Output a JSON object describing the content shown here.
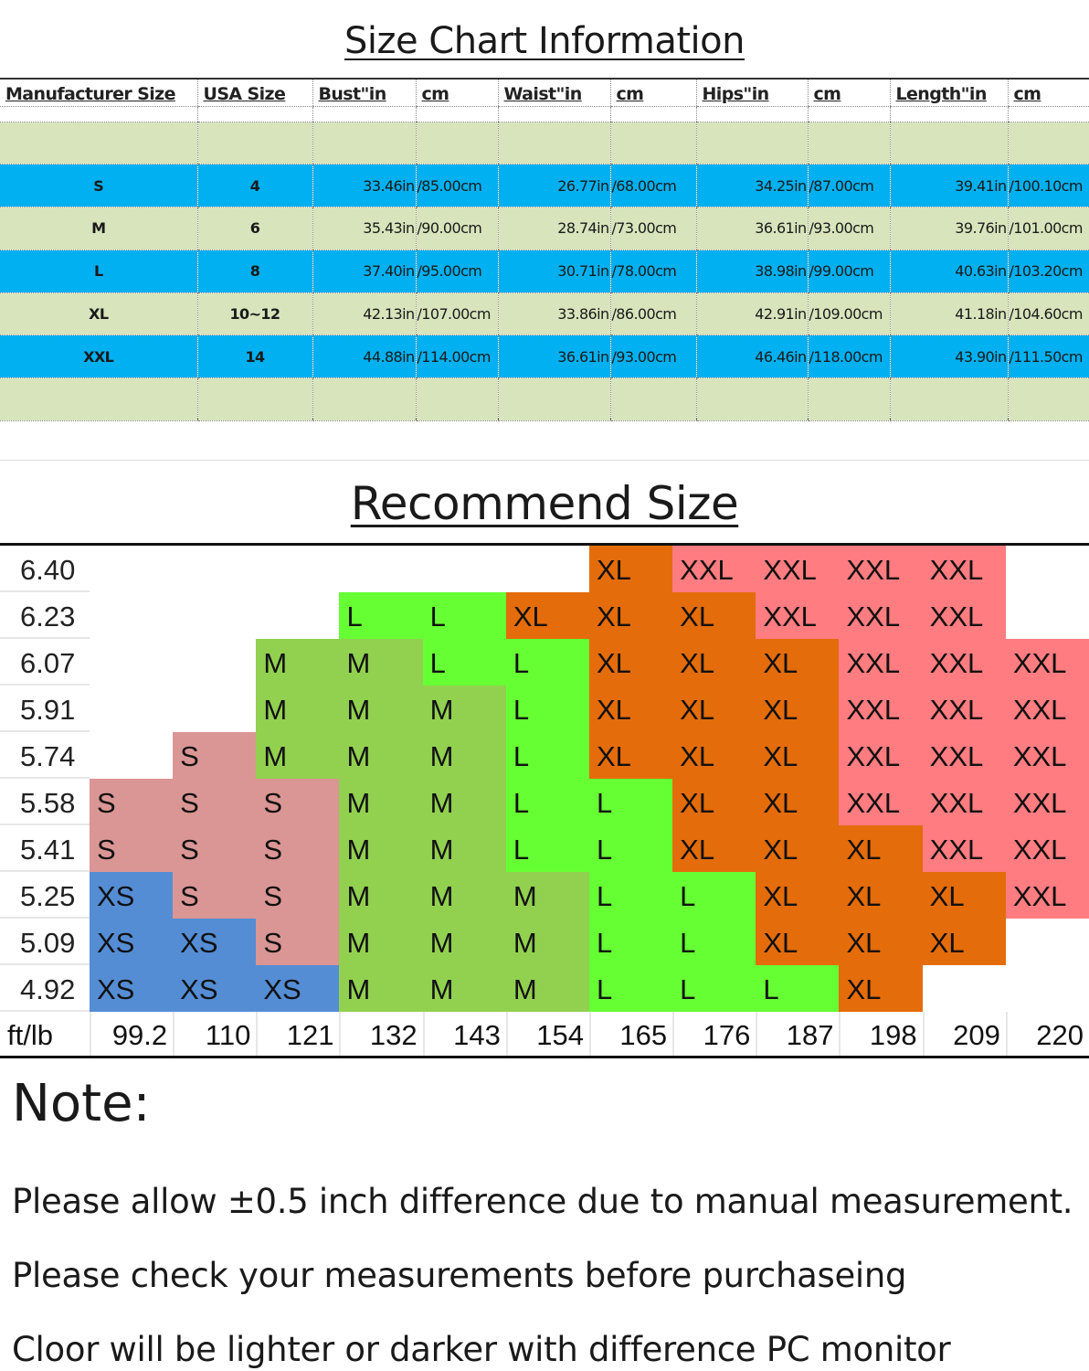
{
  "size_chart": {
    "title": "Size Chart Information",
    "headers": [
      "Manufacturer Size",
      "USA Size",
      "Bust\"in",
      "cm",
      "Waist\"in",
      "cm",
      "Hips\"in",
      "cm",
      "Length\"in",
      "cm"
    ],
    "rows": [
      {
        "size": "S",
        "usa": "4",
        "bust_in": "33.46in",
        "bust_cm": "/85.00cm",
        "waist_in": "26.77in",
        "waist_cm": "/68.00cm",
        "hips_in": "34.25in",
        "hips_cm": "/87.00cm",
        "length_in": "39.41in",
        "length_cm": "/100.10cm"
      },
      {
        "size": "M",
        "usa": "6",
        "bust_in": "35.43in",
        "bust_cm": "/90.00cm",
        "waist_in": "28.74in",
        "waist_cm": "/73.00cm",
        "hips_in": "36.61in",
        "hips_cm": "/93.00cm",
        "length_in": "39.76in",
        "length_cm": "/101.00cm"
      },
      {
        "size": "L",
        "usa": "8",
        "bust_in": "37.40in",
        "bust_cm": "/95.00cm",
        "waist_in": "30.71in",
        "waist_cm": "/78.00cm",
        "hips_in": "38.98in",
        "hips_cm": "/99.00cm",
        "length_in": "40.63in",
        "length_cm": "/103.20cm"
      },
      {
        "size": "XL",
        "usa": "10~12",
        "bust_in": "42.13in",
        "bust_cm": "/107.00cm",
        "waist_in": "33.86in",
        "waist_cm": "/86.00cm",
        "hips_in": "42.91in",
        "hips_cm": "/109.00cm",
        "length_in": "41.18in",
        "length_cm": "/104.60cm"
      },
      {
        "size": "XXL",
        "usa": "14",
        "bust_in": "44.88in",
        "bust_cm": "/114.00cm",
        "waist_in": "36.61in",
        "waist_cm": "/93.00cm",
        "hips_in": "46.46in",
        "hips_cm": "/118.00cm",
        "length_in": "43.90in",
        "length_cm": "/111.50cm"
      }
    ],
    "colors": {
      "green_row": "#d8e4bc",
      "blue_row": "#00b0f0"
    }
  },
  "recommend": {
    "title": "Recommend Size",
    "corner_label": "ft/lb",
    "weights": [
      "99.2",
      "110",
      "121",
      "132",
      "143",
      "154",
      "165",
      "176",
      "187",
      "198",
      "209",
      "220"
    ],
    "heights": [
      "6.40",
      "6.23",
      "6.07",
      "5.91",
      "5.74",
      "5.58",
      "5.41",
      "5.25",
      "5.09",
      "4.92"
    ],
    "grid": [
      [
        "",
        "",
        "",
        "",
        "",
        "",
        "XL",
        "XXL",
        "XXL",
        "XXL",
        "XXL",
        ""
      ],
      [
        "",
        "",
        "",
        "L",
        "L",
        "XL",
        "XL",
        "XL",
        "XXL",
        "XXL",
        "XXL",
        ""
      ],
      [
        "",
        "",
        "M",
        "M",
        "L",
        "L",
        "XL",
        "XL",
        "XL",
        "XXL",
        "XXL",
        "XXL"
      ],
      [
        "",
        "",
        "M",
        "M",
        "M",
        "L",
        "XL",
        "XL",
        "XL",
        "XXL",
        "XXL",
        "XXL"
      ],
      [
        "",
        "S",
        "M",
        "M",
        "M",
        "L",
        "XL",
        "XL",
        "XL",
        "XXL",
        "XXL",
        "XXL"
      ],
      [
        "S",
        "S",
        "S",
        "M",
        "M",
        "L",
        "L",
        "XL",
        "XL",
        "XXL",
        "XXL",
        "XXL"
      ],
      [
        "S",
        "S",
        "S",
        "M",
        "M",
        "L",
        "L",
        "XL",
        "XL",
        "XL",
        "XXL",
        "XXL"
      ],
      [
        "XS",
        "S",
        "S",
        "M",
        "M",
        "M",
        "L",
        "L",
        "XL",
        "XL",
        "XL",
        "XXL"
      ],
      [
        "XS",
        "XS",
        "S",
        "M",
        "M",
        "M",
        "L",
        "L",
        "XL",
        "XL",
        "XL",
        ""
      ],
      [
        "XS",
        "XS",
        "XS",
        "M",
        "M",
        "M",
        "L",
        "L",
        "L",
        "XL",
        "",
        ""
      ]
    ],
    "size_colors": {
      "XS": "#548dd4",
      "S": "#da9694",
      "M": "#92d050",
      "L": "#66ff33",
      "XL": "#e46c0a",
      "XXL": "#ff7c80"
    }
  },
  "notes": {
    "title": "Note:",
    "lines": [
      "Please allow ±0.5 inch difference due to manual measurement.",
      "Please check your measurements before purchaseing",
      "Cloor will be lighter or darker with difference PC monitor"
    ]
  }
}
